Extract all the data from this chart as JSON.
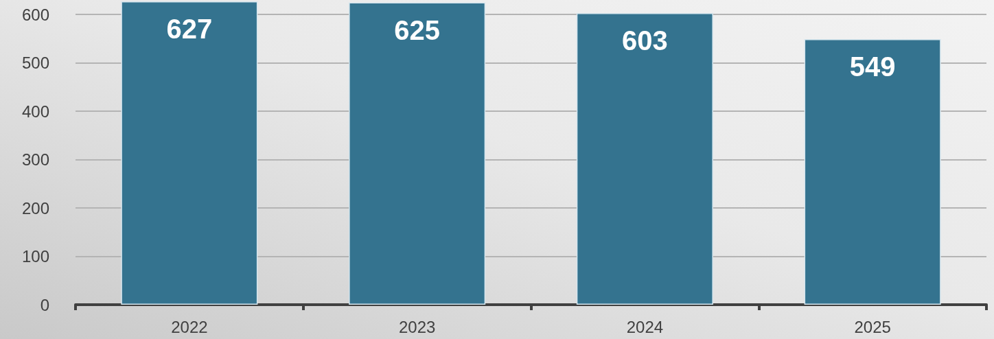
{
  "chart_data": {
    "type": "bar",
    "categories": [
      "2022",
      "2023",
      "2024",
      "2025"
    ],
    "values": [
      627,
      625,
      603,
      549
    ],
    "color": "#34738f",
    "ylim": [
      0,
      630
    ],
    "yticks": [
      0,
      100,
      200,
      300,
      400,
      500,
      600
    ],
    "grid": "y",
    "data_labels": true
  }
}
